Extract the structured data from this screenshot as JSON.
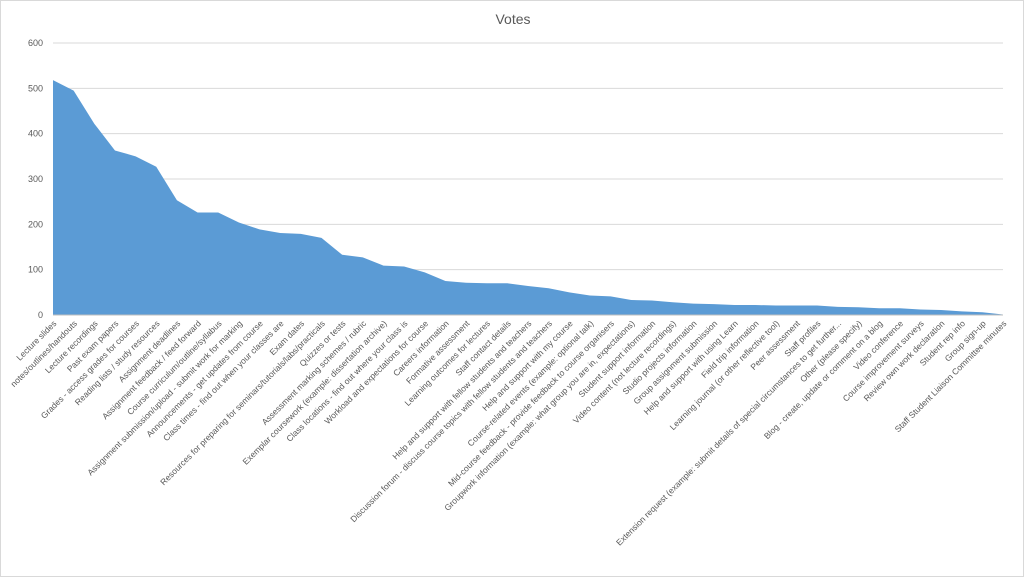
{
  "chart_data": {
    "type": "area",
    "title": "Votes",
    "xlabel": "",
    "ylabel": "",
    "ylim": [
      0,
      600
    ],
    "yticks": [
      0,
      100,
      200,
      300,
      400,
      500,
      600
    ],
    "grid": true,
    "legend": "none",
    "color": "#5B9BD5",
    "gridColor": "#d9d9d9",
    "categories": [
      "Lecture slides",
      "notes/outlines/handouts",
      "Lecture recordings",
      "Past exam papers",
      "Grades - access grades for courses",
      "Reading lists / study resources",
      "Assignment deadlines",
      "Assignment feedback / feed forward",
      "Course curriculum/outline/syllabus",
      "Assignment submission/upload - submit work for marking",
      "Announcements - get updates from course",
      "Class times - find out when your classes are",
      "Exam dates",
      "Resources for preparing for seminars/tutorials/labs/practicals",
      "Quizzes or tests",
      "Assessment marking schemes / rubric",
      "Exemplar coursework (example: dissertation archive)",
      "Class locations - find out where your class is",
      "Workload and expectations for course",
      "Careers information",
      "Formative assessment",
      "Learning outcomes for lectures",
      "Staff contact details",
      "Help and support with fellow students and teachers",
      "Discussion forum - discuss course topics with fellow students and teachers",
      "Help and support with my course",
      "Course-related events (example: optional talk)",
      "Mid-course feedback - provide feedback to course organisers",
      "Groupwork information (example: what group you are in, expectations)",
      "Student support information",
      "Video content (not lecture recordings)",
      "Studio projects information",
      "Group assignment submission",
      "Help and support with using Learn",
      "Field trip information",
      "Learning journal (or other reflective tool)",
      "Peer assessment",
      "Staff profiles",
      "Extension request (example: submit details of special circumstances to get further...",
      "Other (please specify)",
      "Blog - create, update or comment on a blog",
      "Video conference",
      "Course improvement surveys",
      "Review own work declaration",
      "Student rep info",
      "Group sign-up",
      "Staff Student Liaison Committee minutes"
    ],
    "values": [
      518,
      495,
      422,
      363,
      350,
      327,
      253,
      226,
      226,
      204,
      189,
      181,
      179,
      170,
      133,
      127,
      109,
      107,
      94,
      75,
      71,
      70,
      70,
      64,
      59,
      50,
      43,
      41,
      33,
      32,
      28,
      25,
      24,
      22,
      22,
      21,
      21,
      21,
      18,
      17,
      15,
      15,
      12,
      11,
      8,
      6,
      1
    ]
  }
}
